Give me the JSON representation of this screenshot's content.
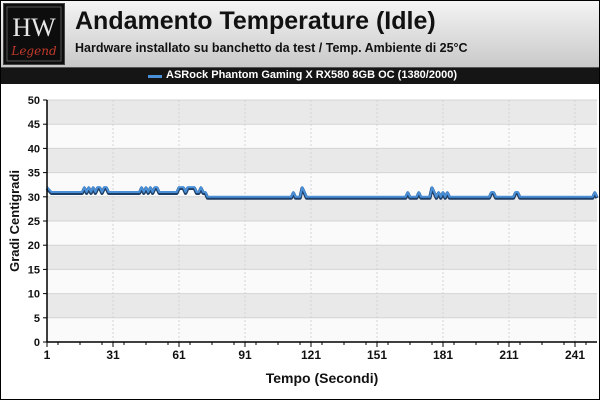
{
  "header": {
    "title": "Andamento Temperature (Idle)",
    "subtitle": "Hardware installato su banchetto da test / Temp. Ambiente di 25°C",
    "logo_text_top": "HW",
    "logo_text_bottom": "Legend",
    "logo_accent_color": "#c0392b"
  },
  "colors": {
    "series": "#4a90d9",
    "series_shadow": "#1f3f66",
    "band_dark": "#e9e9e9",
    "band_light": "#fafafa"
  },
  "chart_data": {
    "type": "line",
    "title": "Andamento Temperature (Idle)",
    "subtitle": "Hardware installato su banchetto da test / Temp. Ambiente di 25°C",
    "xlabel": "Tempo (Secondi)",
    "ylabel": "Gradi Centigradi",
    "xlim": [
      1,
      251
    ],
    "ylim": [
      0,
      50
    ],
    "x_ticks": [
      1,
      31,
      61,
      91,
      121,
      151,
      181,
      211,
      241
    ],
    "y_ticks": [
      0,
      5,
      10,
      15,
      20,
      25,
      30,
      35,
      40,
      45,
      50
    ],
    "grid": true,
    "legend_position": "top",
    "series": [
      {
        "name": "ASRock Phantom Gaming X RX580 8GB OC (1380/2000)",
        "x": [
          1,
          3,
          17,
          18,
          19,
          20,
          21,
          22,
          23,
          24,
          25,
          26,
          27,
          28,
          29,
          30,
          31,
          43,
          44,
          45,
          46,
          47,
          48,
          49,
          50,
          51,
          52,
          53,
          60,
          61,
          62,
          63,
          64,
          65,
          66,
          67,
          68,
          69,
          70,
          71,
          72,
          73,
          74,
          76,
          112,
          113,
          114,
          116,
          117,
          118,
          119,
          164,
          165,
          166,
          169,
          170,
          171,
          175,
          176,
          177,
          178,
          179,
          180,
          181,
          182,
          183,
          184,
          202,
          203,
          204,
          205,
          206,
          213,
          214,
          215,
          216,
          249,
          250,
          251
        ],
        "y": [
          32,
          31,
          31,
          32,
          31,
          32,
          31,
          32,
          31,
          32,
          32,
          31,
          32,
          32,
          31,
          31,
          31,
          31,
          32,
          31,
          32,
          31,
          32,
          31,
          32,
          32,
          31,
          31,
          31,
          32,
          32,
          32,
          31,
          32,
          32,
          32,
          32,
          31,
          31,
          32,
          31,
          31,
          30,
          30,
          30,
          31,
          30,
          30,
          32,
          31,
          30,
          30,
          31,
          30,
          30,
          31,
          30,
          30,
          32,
          31,
          30,
          31,
          30,
          31,
          30,
          31,
          30,
          30,
          31,
          31,
          30,
          30,
          30,
          31,
          31,
          30,
          30,
          31,
          30
        ]
      }
    ]
  }
}
